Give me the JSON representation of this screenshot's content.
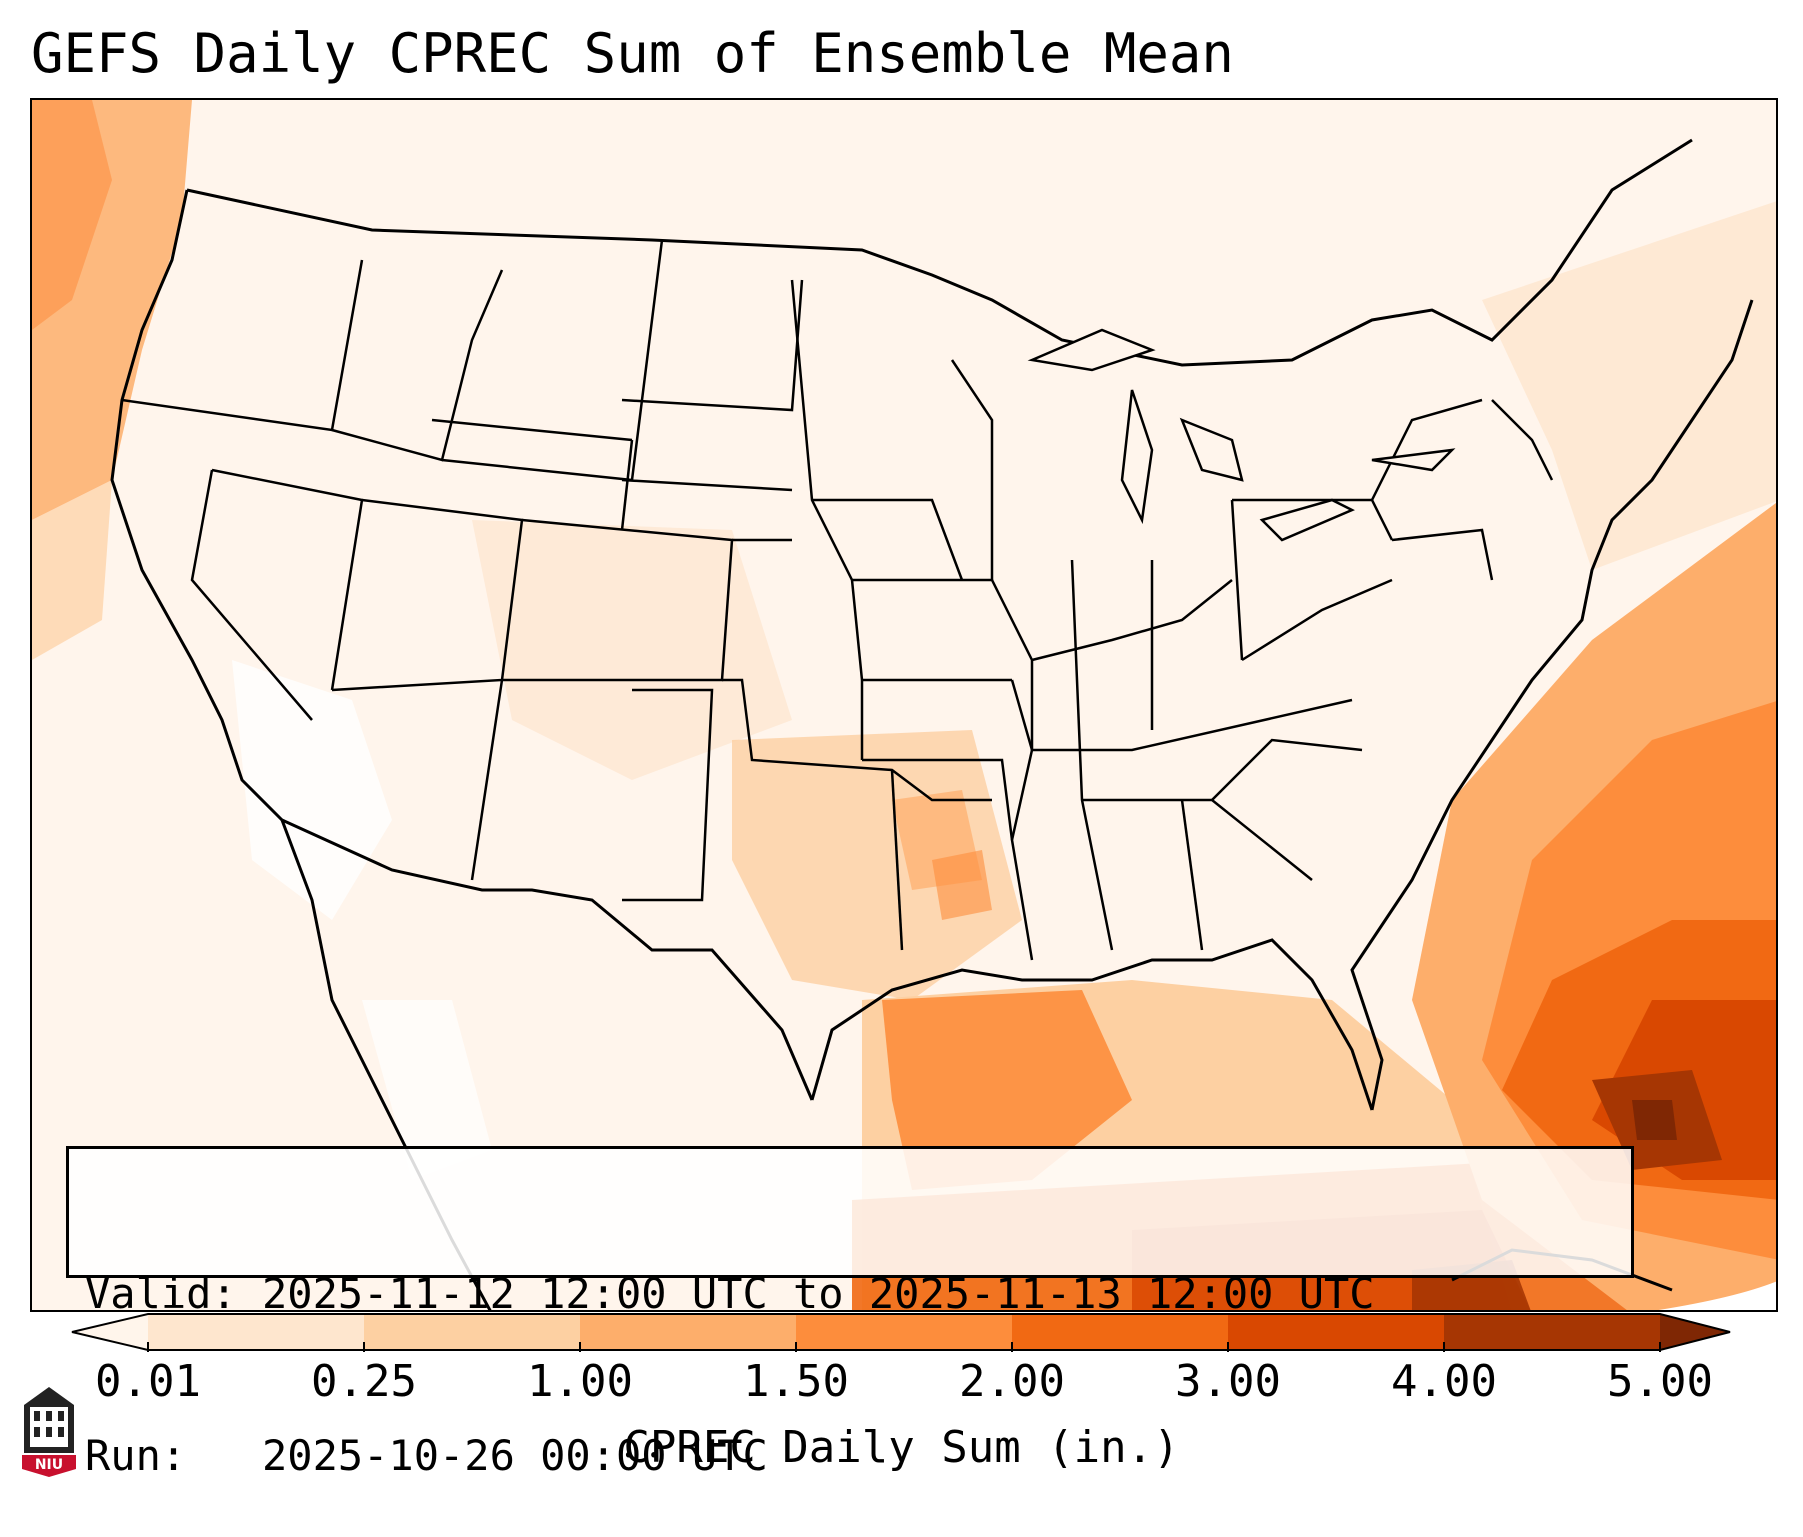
{
  "title": "GEFS Daily CPREC Sum of Ensemble Mean",
  "info": {
    "valid": "Valid: 2025-11-12 12:00 UTC to 2025-11-13 12:00 UTC",
    "run": "Run:   2025-10-26 00:00 UTC"
  },
  "colorbar": {
    "label": "CPREC Daily Sum (in.)",
    "ticks": [
      "0.01",
      "0.25",
      "1.00",
      "1.50",
      "2.00",
      "3.00",
      "4.00",
      "5.00"
    ],
    "colors": [
      "#fff5eb",
      "#fee6ce",
      "#fdd0a2",
      "#fdae6b",
      "#fd8d3c",
      "#f16913",
      "#d94801",
      "#a63603",
      "#7f2704"
    ]
  },
  "logo": {
    "text": "NIU",
    "colors": {
      "dark": "#222222",
      "red": "#c8102e"
    }
  },
  "colors": {
    "ocean_low": "#fff5eb",
    "land_low": "#fff5ec",
    "border": "#000000"
  }
}
